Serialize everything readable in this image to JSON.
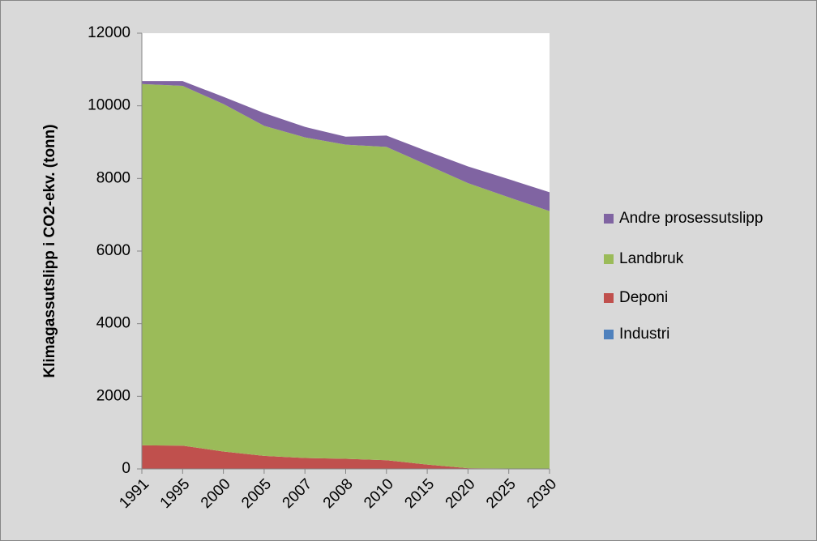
{
  "chart_data": {
    "type": "stacked_area",
    "y_label": "Klimagassutslipp i CO2-ekv. (tonn)",
    "categories": [
      "1991",
      "1995",
      "2000",
      "2005",
      "2007",
      "2008",
      "2010",
      "2015",
      "2020",
      "2025",
      "2030"
    ],
    "series": [
      {
        "name": "Industri",
        "color": "#4f81bd",
        "values": [
          0,
          0,
          0,
          0,
          0,
          0,
          0,
          0,
          0,
          0,
          0
        ]
      },
      {
        "name": "Deponi",
        "color": "#c0504d",
        "values": [
          650,
          640,
          480,
          360,
          300,
          280,
          240,
          120,
          20,
          10,
          0
        ]
      },
      {
        "name": "Landbruk",
        "color": "#9bbb59",
        "values": [
          9950,
          9910,
          9570,
          9090,
          8830,
          8650,
          8630,
          8250,
          7850,
          7470,
          7100
        ]
      },
      {
        "name": "Andre prosessutslipp",
        "color": "#8064a2",
        "values": [
          80,
          130,
          200,
          350,
          290,
          220,
          310,
          380,
          460,
          500,
          520
        ]
      }
    ],
    "ylim": [
      0,
      12000
    ],
    "yticks": [
      0,
      2000,
      4000,
      6000,
      8000,
      10000,
      12000
    ]
  }
}
